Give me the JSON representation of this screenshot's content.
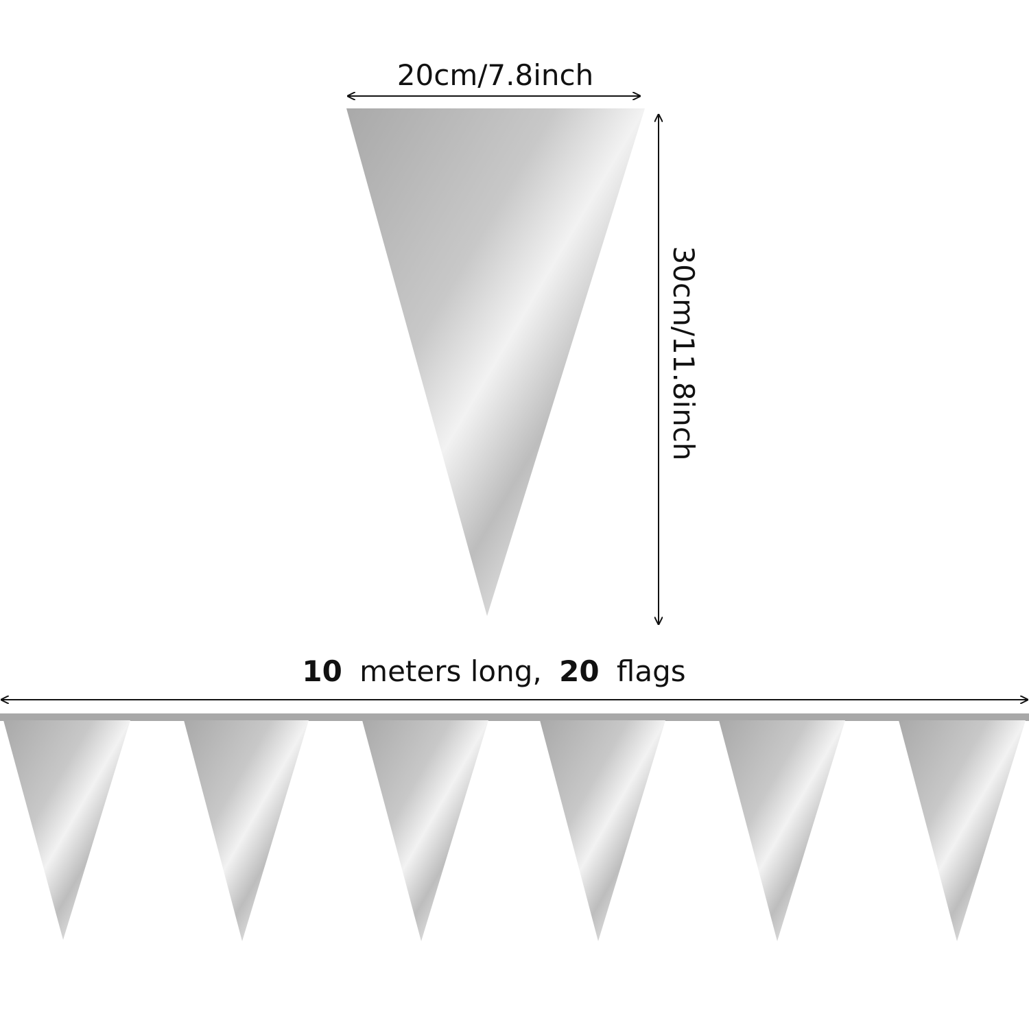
{
  "width_label": "20cm/7.8inch",
  "height_label": "30cm/11.8inch",
  "length_label": {
    "count_meters": "10",
    "meters_text": "meters long,",
    "count_flags": "20",
    "flags_text": "flags"
  }
}
